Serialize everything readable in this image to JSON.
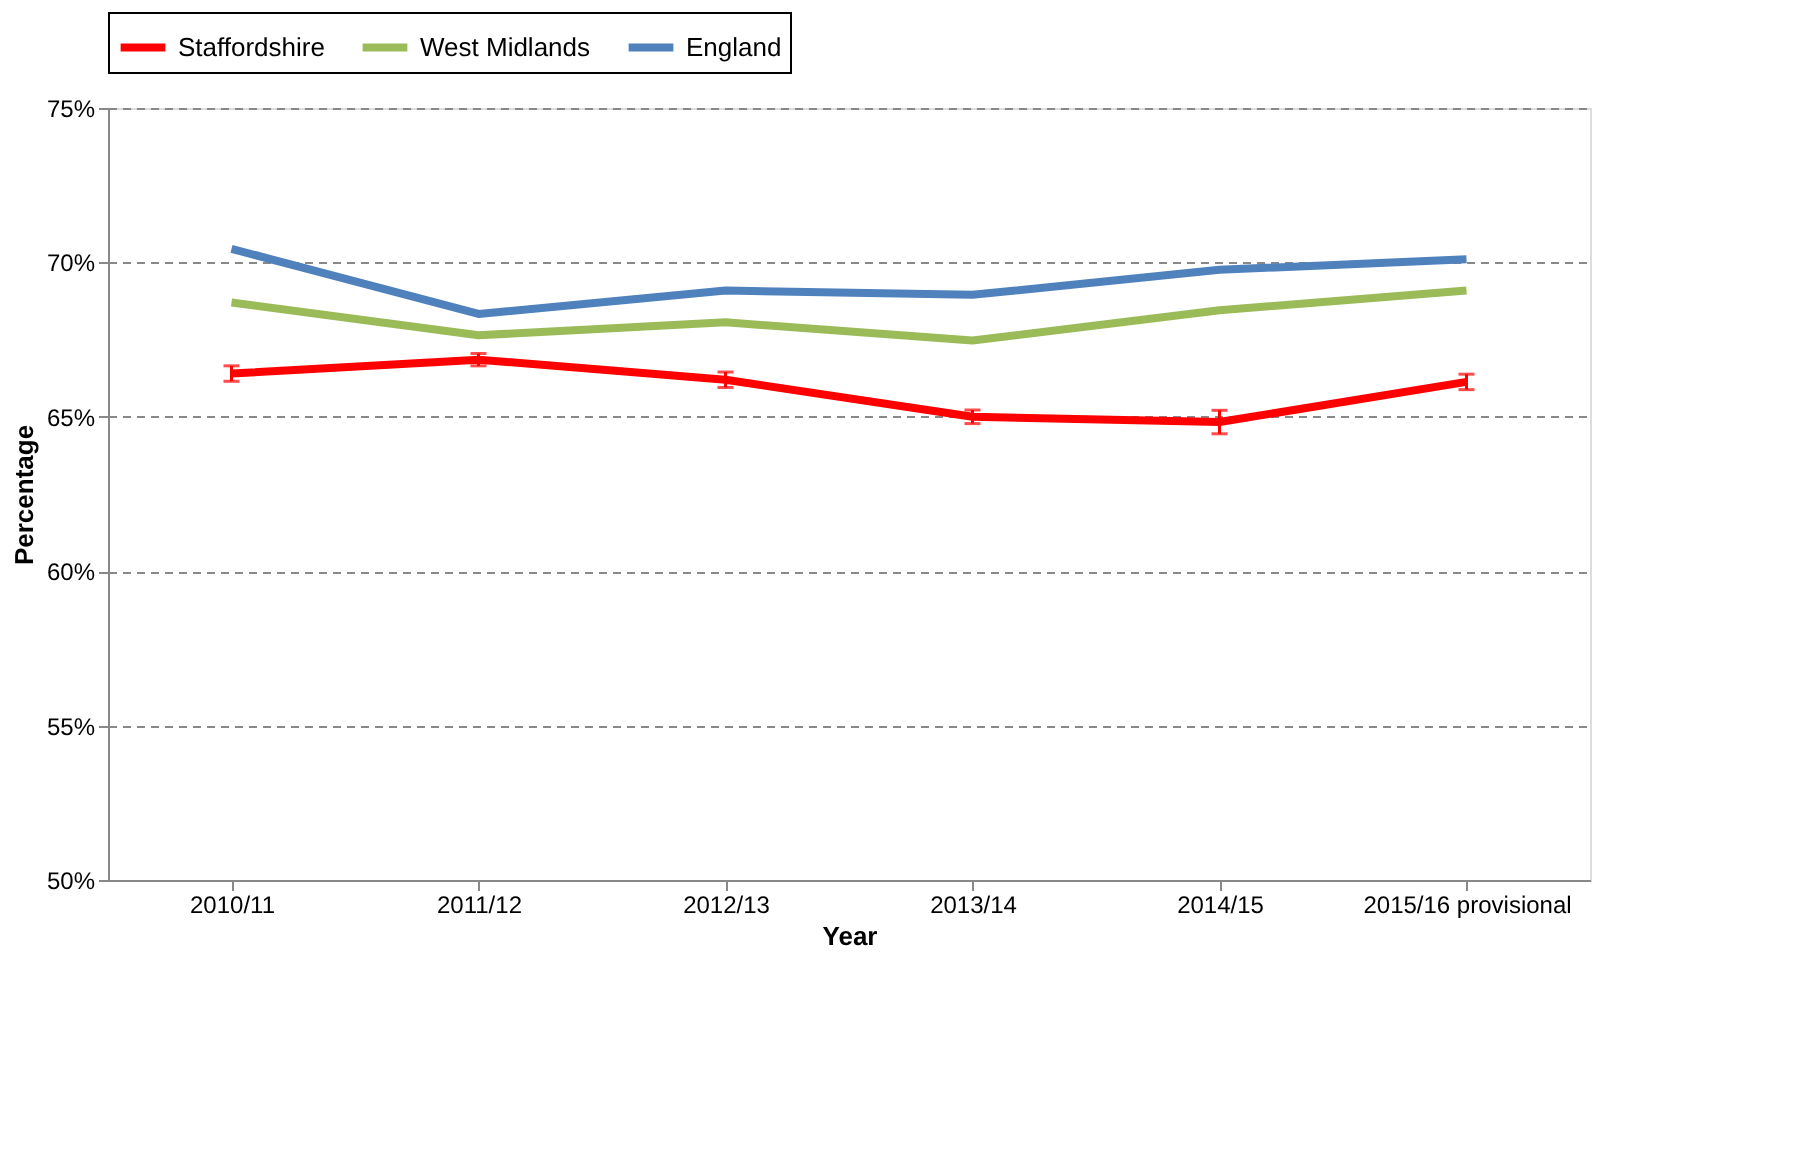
{
  "chart_data": {
    "type": "line",
    "xlabel": "Year",
    "ylabel": "Percentage",
    "categories": [
      "2010/11",
      "2011/12",
      "2012/13",
      "2013/14",
      "2014/15",
      "2015/16 provisional"
    ],
    "series": [
      {
        "name": "Staffordshire",
        "color": "#ff0000",
        "values": [
          66.4,
          66.85,
          66.2,
          65.0,
          64.83,
          66.13
        ],
        "errors": [
          0.25,
          0.2,
          0.25,
          0.22,
          0.38,
          0.25
        ]
      },
      {
        "name": "West Midlands",
        "color": "#9bbb59",
        "values": [
          68.7,
          67.64,
          68.06,
          67.47,
          68.45,
          69.09
        ]
      },
      {
        "name": "England",
        "color": "#4f81bd",
        "values": [
          70.44,
          68.33,
          69.09,
          68.95,
          69.76,
          70.1
        ]
      }
    ],
    "ylim": [
      50,
      75
    ],
    "yticks": [
      {
        "value": 50,
        "label": "50%"
      },
      {
        "value": 55,
        "label": "55%"
      },
      {
        "value": 60,
        "label": "60%"
      },
      {
        "value": 65,
        "label": "65%"
      },
      {
        "value": 70,
        "label": "70%"
      },
      {
        "value": 75,
        "label": "75%"
      }
    ],
    "grid": "y",
    "legend": "top",
    "marker": "none",
    "line_style": "solid"
  }
}
